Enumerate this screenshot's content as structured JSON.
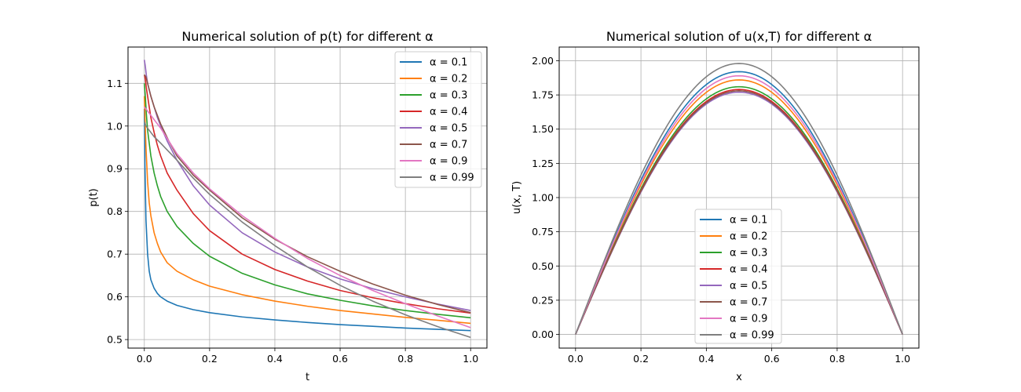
{
  "colors": [
    "#1f77b4",
    "#ff7f0e",
    "#2ca02c",
    "#d62728",
    "#9467bd",
    "#8c564b",
    "#e377c2",
    "#7f7f7f"
  ],
  "chart_data": [
    {
      "type": "line",
      "title": "Numerical solution of p(t) for different α",
      "xlabel": "t",
      "ylabel": "p(t)",
      "xlim": [
        -0.05,
        1.05
      ],
      "ylim": [
        0.48,
        1.185
      ],
      "xticks": [
        0.0,
        0.2,
        0.4,
        0.6,
        0.8,
        1.0
      ],
      "xtick_labels": [
        "0.0",
        "0.2",
        "0.4",
        "0.6",
        "0.8",
        "1.0"
      ],
      "yticks": [
        0.5,
        0.6,
        0.7,
        0.8,
        0.9,
        1.0,
        1.1
      ],
      "ytick_labels": [
        "0.5",
        "0.6",
        "0.7",
        "0.8",
        "0.9",
        "1.0",
        "1.1"
      ],
      "grid": true,
      "legend": "upper right",
      "series": [
        {
          "name": "α = 0.1",
          "x": [
            0,
            0.002,
            0.005,
            0.01,
            0.015,
            0.02,
            0.03,
            0.04,
            0.05,
            0.07,
            0.1,
            0.15,
            0.2,
            0.3,
            0.4,
            0.5,
            0.6,
            0.7,
            0.8,
            0.9,
            1.0
          ],
          "y": [
            1.04,
            0.9,
            0.78,
            0.7,
            0.66,
            0.64,
            0.62,
            0.608,
            0.6,
            0.59,
            0.58,
            0.57,
            0.563,
            0.553,
            0.546,
            0.54,
            0.535,
            0.531,
            0.527,
            0.524,
            0.521
          ]
        },
        {
          "name": "α = 0.2",
          "x": [
            0,
            0.002,
            0.005,
            0.01,
            0.015,
            0.02,
            0.03,
            0.04,
            0.05,
            0.07,
            0.1,
            0.15,
            0.2,
            0.3,
            0.4,
            0.5,
            0.6,
            0.7,
            0.8,
            0.9,
            1.0
          ],
          "y": [
            1.07,
            1.02,
            0.95,
            0.87,
            0.82,
            0.79,
            0.75,
            0.725,
            0.705,
            0.68,
            0.66,
            0.64,
            0.625,
            0.605,
            0.59,
            0.578,
            0.568,
            0.56,
            0.552,
            0.545,
            0.538
          ]
        },
        {
          "name": "α = 0.3",
          "x": [
            0,
            0.003,
            0.006,
            0.01,
            0.015,
            0.02,
            0.03,
            0.04,
            0.05,
            0.07,
            0.1,
            0.15,
            0.2,
            0.3,
            0.4,
            0.5,
            0.6,
            0.7,
            0.8,
            0.9,
            1.0
          ],
          "y": [
            1.1,
            1.07,
            1.03,
            0.99,
            0.96,
            0.93,
            0.89,
            0.86,
            0.835,
            0.8,
            0.765,
            0.725,
            0.695,
            0.655,
            0.628,
            0.607,
            0.592,
            0.579,
            0.568,
            0.559,
            0.551
          ]
        },
        {
          "name": "α = 0.4",
          "x": [
            0,
            0.003,
            0.006,
            0.01,
            0.015,
            0.02,
            0.03,
            0.04,
            0.05,
            0.07,
            0.1,
            0.15,
            0.2,
            0.3,
            0.4,
            0.5,
            0.6,
            0.7,
            0.8,
            0.9,
            1.0
          ],
          "y": [
            1.12,
            1.11,
            1.09,
            1.07,
            1.045,
            1.02,
            0.985,
            0.955,
            0.93,
            0.89,
            0.85,
            0.795,
            0.755,
            0.7,
            0.664,
            0.637,
            0.615,
            0.598,
            0.584,
            0.572,
            0.562
          ]
        },
        {
          "name": "α = 0.5",
          "x": [
            0,
            0.003,
            0.006,
            0.01,
            0.015,
            0.02,
            0.03,
            0.04,
            0.05,
            0.07,
            0.1,
            0.15,
            0.2,
            0.3,
            0.4,
            0.5,
            0.6,
            0.7,
            0.8,
            0.9,
            1.0
          ],
          "y": [
            1.155,
            1.14,
            1.12,
            1.1,
            1.085,
            1.07,
            1.045,
            1.02,
            1.0,
            0.965,
            0.92,
            0.86,
            0.815,
            0.75,
            0.705,
            0.67,
            0.642,
            0.619,
            0.6,
            0.583,
            0.568
          ]
        },
        {
          "name": "α = 0.7",
          "x": [
            0,
            0.005,
            0.01,
            0.02,
            0.03,
            0.05,
            0.075,
            0.1,
            0.15,
            0.2,
            0.3,
            0.4,
            0.5,
            0.6,
            0.7,
            0.8,
            0.9,
            1.0
          ],
          "y": [
            1.12,
            1.115,
            1.1,
            1.07,
            1.045,
            1.005,
            0.965,
            0.93,
            0.885,
            0.85,
            0.785,
            0.735,
            0.694,
            0.66,
            0.63,
            0.604,
            0.582,
            0.563
          ]
        },
        {
          "name": "α = 0.9",
          "x": [
            0,
            0.005,
            0.01,
            0.02,
            0.03,
            0.05,
            0.075,
            0.1,
            0.15,
            0.2,
            0.3,
            0.4,
            0.5,
            0.6,
            0.7,
            0.8,
            0.9,
            1.0
          ],
          "y": [
            1.045,
            1.04,
            1.035,
            1.025,
            1.015,
            0.995,
            0.965,
            0.935,
            0.89,
            0.853,
            0.79,
            0.737,
            0.69,
            0.65,
            0.615,
            0.584,
            0.555,
            0.528
          ]
        },
        {
          "name": "α = 0.99",
          "x": [
            0,
            0.005,
            0.01,
            0.02,
            0.03,
            0.05,
            0.075,
            0.1,
            0.15,
            0.2,
            0.3,
            0.4,
            0.5,
            0.6,
            0.7,
            0.8,
            0.9,
            1.0
          ],
          "y": [
            1.01,
            1.0,
            0.995,
            0.985,
            0.975,
            0.96,
            0.94,
            0.92,
            0.878,
            0.84,
            0.775,
            0.72,
            0.67,
            0.627,
            0.59,
            0.558,
            0.53,
            0.505
          ]
        }
      ]
    },
    {
      "type": "line",
      "title": "Numerical solution of u(x,T) for different α",
      "xlabel": "x",
      "ylabel": "u(x, T)",
      "xlim": [
        -0.05,
        1.05
      ],
      "ylim": [
        -0.1,
        2.1
      ],
      "xticks": [
        0.0,
        0.2,
        0.4,
        0.6,
        0.8,
        1.0
      ],
      "xtick_labels": [
        "0.0",
        "0.2",
        "0.4",
        "0.6",
        "0.8",
        "1.0"
      ],
      "yticks": [
        0.0,
        0.25,
        0.5,
        0.75,
        1.0,
        1.25,
        1.5,
        1.75,
        2.0
      ],
      "ytick_labels": [
        "0.00",
        "0.25",
        "0.50",
        "0.75",
        "1.00",
        "1.25",
        "1.50",
        "1.75",
        "2.00"
      ],
      "grid": true,
      "legend": "lower center",
      "curve": "sine",
      "series": [
        {
          "name": "α = 0.1",
          "peak": 1.92
        },
        {
          "name": "α = 0.2",
          "peak": 1.86
        },
        {
          "name": "α = 0.3",
          "peak": 1.81
        },
        {
          "name": "α = 0.4",
          "peak": 1.79
        },
        {
          "name": "α = 0.5",
          "peak": 1.77
        },
        {
          "name": "α = 0.7",
          "peak": 1.78
        },
        {
          "name": "α = 0.9",
          "peak": 1.89
        },
        {
          "name": "α = 0.99",
          "peak": 1.98
        }
      ]
    }
  ]
}
